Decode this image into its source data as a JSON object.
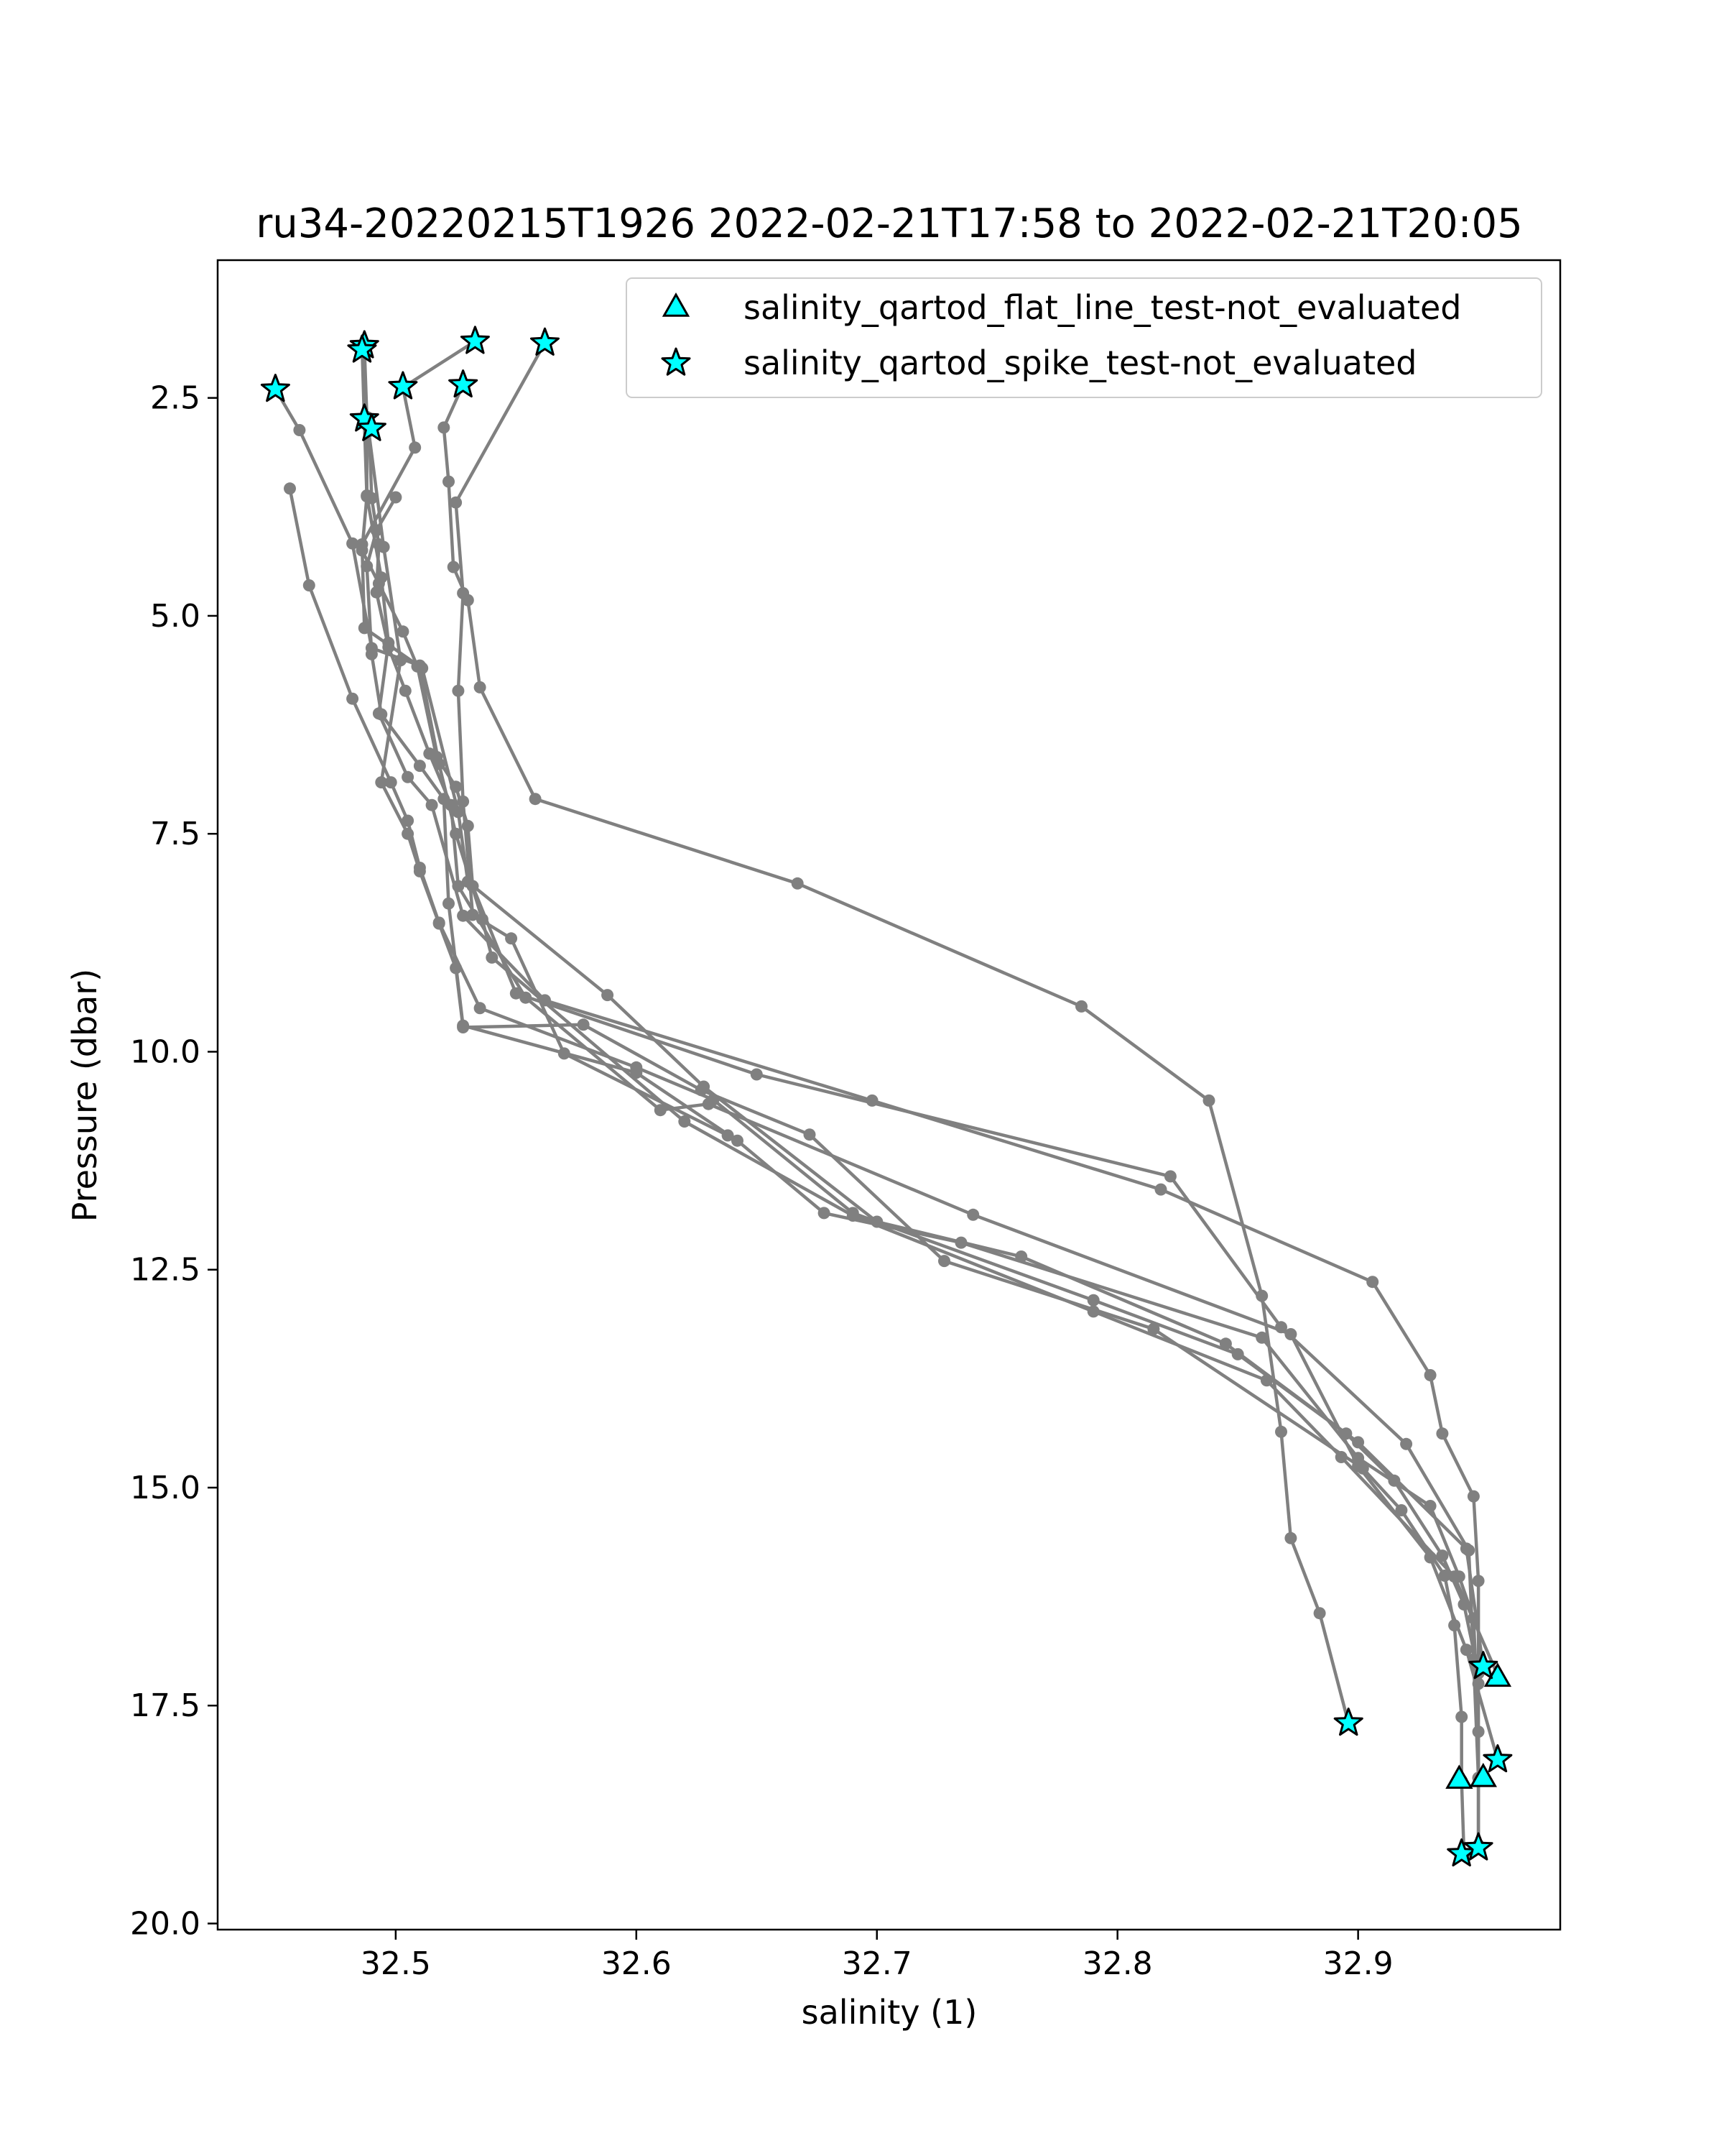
{
  "chart_data": {
    "type": "line",
    "title": "ru34-20220215T1926 2022-02-21T17:58 to 2022-02-21T20:05",
    "xlabel": "salinity (1)",
    "ylabel": "Pressure (dbar)",
    "xlim": [
      32.426,
      32.984
    ],
    "ylim": [
      20.07,
      0.92
    ],
    "y_inverted": true,
    "grid": false,
    "x_ticks": [
      {
        "value": 32.5,
        "label": "32.5"
      },
      {
        "value": 32.6,
        "label": "32.6"
      },
      {
        "value": 32.7,
        "label": "32.7"
      },
      {
        "value": 32.8,
        "label": "32.8"
      },
      {
        "value": 32.9,
        "label": "32.9"
      }
    ],
    "y_ticks": [
      {
        "value": 2.5,
        "label": "2.5"
      },
      {
        "value": 5.0,
        "label": "5.0"
      },
      {
        "value": 7.5,
        "label": "7.5"
      },
      {
        "value": 10.0,
        "label": "10.0"
      },
      {
        "value": 12.5,
        "label": "12.5"
      },
      {
        "value": 15.0,
        "label": "15.0"
      },
      {
        "value": 17.5,
        "label": "17.5"
      },
      {
        "value": 20.0,
        "label": "20.0"
      }
    ],
    "legend": {
      "placement": "top-right",
      "entries": [
        {
          "label": "salinity_qartod_flat_line_test-not_evaluated",
          "marker": "triangle"
        },
        {
          "label": "salinity_qartod_spike_test-not_evaluated",
          "marker": "star"
        }
      ]
    },
    "colors": {
      "line": "#808080",
      "marker_fill": "#00ffff",
      "marker_edge": "#000000"
    },
    "series": [
      {
        "points": [
          [
            32.562,
            1.87
          ],
          [
            32.525,
            3.7
          ],
          [
            32.528,
            4.74
          ],
          [
            32.526,
            5.86
          ],
          [
            32.528,
            7.13
          ],
          [
            32.532,
            8.43
          ],
          [
            32.548,
            8.7
          ],
          [
            32.57,
            10.02
          ],
          [
            32.638,
            10.96
          ]
        ]
      },
      {
        "points": [
          [
            32.533,
            1.85
          ],
          [
            32.503,
            2.38
          ],
          [
            32.508,
            3.07
          ],
          [
            32.486,
            4.18
          ],
          [
            32.487,
            5.14
          ],
          [
            32.511,
            5.6
          ],
          [
            32.526,
            7.25
          ],
          [
            32.53,
            8.05
          ],
          [
            32.588,
            9.35
          ],
          [
            32.628,
            10.4
          ],
          [
            32.7,
            11.95
          ],
          [
            32.76,
            12.35
          ],
          [
            32.845,
            13.35
          ],
          [
            32.9,
            14.48
          ],
          [
            32.945,
            15.7
          ],
          [
            32.952,
            17.05
          ]
        ]
      },
      {
        "points": [
          [
            32.45,
            2.4
          ],
          [
            32.46,
            2.87
          ],
          [
            32.482,
            4.17
          ],
          [
            32.49,
            5.37
          ],
          [
            32.51,
            5.57
          ],
          [
            32.518,
            6.7
          ],
          [
            32.525,
            7.5
          ],
          [
            32.536,
            8.48
          ],
          [
            32.54,
            8.92
          ],
          [
            32.62,
            10.8
          ],
          [
            32.69,
            11.88
          ],
          [
            32.79,
            12.98
          ],
          [
            32.862,
            13.77
          ],
          [
            32.893,
            14.65
          ],
          [
            32.94,
            16.02
          ],
          [
            32.958,
            17.15
          ]
        ]
      },
      {
        "points": [
          [
            32.486,
            1.9
          ],
          [
            32.487,
            2.79
          ],
          [
            32.488,
            3.63
          ],
          [
            32.486,
            4.25
          ],
          [
            32.493,
            4.63
          ],
          [
            32.503,
            5.18
          ],
          [
            32.509,
            5.58
          ],
          [
            32.517,
            6.62
          ],
          [
            32.525,
            6.96
          ],
          [
            32.53,
            7.41
          ],
          [
            32.532,
            8.1
          ],
          [
            32.55,
            9.33
          ],
          [
            32.65,
            10.26
          ],
          [
            32.822,
            11.43
          ],
          [
            32.868,
            13.16
          ],
          [
            32.92,
            14.5
          ],
          [
            32.946,
            15.72
          ],
          [
            32.948,
            16.97
          ],
          [
            32.95,
            18.33
          ]
        ]
      },
      {
        "points": [
          [
            32.528,
            2.35
          ],
          [
            32.52,
            2.84
          ],
          [
            32.522,
            3.46
          ],
          [
            32.524,
            4.44
          ],
          [
            32.53,
            4.82
          ],
          [
            32.535,
            5.82
          ],
          [
            32.558,
            7.1
          ],
          [
            32.667,
            8.07
          ],
          [
            32.785,
            9.48
          ],
          [
            32.838,
            10.56
          ],
          [
            32.86,
            12.8
          ],
          [
            32.868,
            14.36
          ],
          [
            32.872,
            15.58
          ],
          [
            32.884,
            16.44
          ],
          [
            32.896,
            17.7
          ]
        ]
      },
      {
        "points": [
          [
            32.489,
            2.88
          ],
          [
            32.49,
            3.65
          ],
          [
            32.493,
            4.18
          ],
          [
            32.492,
            4.73
          ],
          [
            32.497,
            5.36
          ],
          [
            32.504,
            5.86
          ],
          [
            32.514,
            6.58
          ],
          [
            32.523,
            7.17
          ],
          [
            32.526,
            8.1
          ],
          [
            32.554,
            9.38
          ],
          [
            32.61,
            10.67
          ],
          [
            32.63,
            10.6
          ],
          [
            32.74,
            11.87
          ],
          [
            32.872,
            13.24
          ],
          [
            32.9,
            14.75
          ],
          [
            32.93,
            15.8
          ],
          [
            32.945,
            16.86
          ],
          [
            32.958,
            18.12
          ]
        ]
      },
      {
        "points": [
          [
            32.487,
            1.92
          ],
          [
            32.488,
            2.72
          ],
          [
            32.488,
            3.62
          ],
          [
            32.494,
            4.56
          ],
          [
            32.497,
            5.31
          ],
          [
            32.493,
            6.12
          ],
          [
            32.505,
            6.85
          ],
          [
            32.515,
            7.17
          ],
          [
            32.528,
            8.44
          ],
          [
            32.562,
            9.41
          ],
          [
            32.698,
            10.56
          ],
          [
            32.818,
            11.58
          ],
          [
            32.906,
            12.64
          ],
          [
            32.93,
            13.71
          ],
          [
            32.935,
            14.38
          ],
          [
            32.948,
            15.1
          ],
          [
            32.95,
            16.07
          ],
          [
            32.95,
            17.25
          ],
          [
            32.95,
            18.33
          ],
          [
            32.95,
            19.1
          ]
        ]
      },
      {
        "points": [
          [
            32.488,
            2.72
          ],
          [
            32.495,
            4.21
          ],
          [
            32.502,
            5.51
          ],
          [
            32.494,
            6.91
          ],
          [
            32.505,
            7.5
          ],
          [
            32.51,
            7.93
          ],
          [
            32.518,
            8.53
          ],
          [
            32.525,
            9.04
          ],
          [
            32.528,
            9.72
          ],
          [
            32.578,
            9.69
          ],
          [
            32.627,
            10.44
          ],
          [
            32.672,
            10.95
          ],
          [
            32.728,
            12.4
          ],
          [
            32.815,
            13.18
          ],
          [
            32.902,
            14.78
          ],
          [
            32.918,
            15.26
          ],
          [
            32.936,
            16.01
          ],
          [
            32.94,
            16.58
          ],
          [
            32.943,
            17.63
          ],
          [
            32.943,
            18.36
          ],
          [
            32.944,
            19.2
          ]
        ]
      },
      {
        "points": [
          [
            32.5,
            3.64
          ],
          [
            32.492,
            4.02
          ],
          [
            32.488,
            4.43
          ],
          [
            32.49,
            5.44
          ],
          [
            32.494,
            6.13
          ],
          [
            32.51,
            6.72
          ],
          [
            32.52,
            7.1
          ],
          [
            32.522,
            8.3
          ],
          [
            32.528,
            9.7
          ],
          [
            32.6,
            10.24
          ],
          [
            32.642,
            11.02
          ],
          [
            32.678,
            11.85
          ],
          [
            32.735,
            12.19
          ],
          [
            32.86,
            13.28
          ],
          [
            32.9,
            14.66
          ],
          [
            32.93,
            15.21
          ],
          [
            32.942,
            16.02
          ],
          [
            32.948,
            16.5
          ],
          [
            32.95,
            17.8
          ],
          [
            32.95,
            19.13
          ]
        ]
      },
      {
        "points": [
          [
            32.456,
            3.54
          ],
          [
            32.464,
            4.65
          ],
          [
            32.482,
            5.95
          ],
          [
            32.498,
            6.91
          ],
          [
            32.505,
            7.35
          ],
          [
            32.51,
            7.89
          ],
          [
            32.518,
            8.52
          ],
          [
            32.535,
            9.5
          ],
          [
            32.6,
            10.18
          ],
          [
            32.632,
            10.55
          ],
          [
            32.69,
            11.85
          ],
          [
            32.79,
            12.85
          ],
          [
            32.85,
            13.47
          ],
          [
            32.895,
            14.38
          ],
          [
            32.915,
            14.92
          ],
          [
            32.935,
            15.78
          ],
          [
            32.944,
            16.34
          ],
          [
            32.95,
            17.13
          ]
        ]
      }
    ],
    "flat_line_markers": [
      [
        32.958,
        17.18
      ],
      [
        32.942,
        18.35
      ],
      [
        32.952,
        18.33
      ]
    ],
    "spike_markers": [
      [
        32.562,
        1.87
      ],
      [
        32.533,
        1.85
      ],
      [
        32.487,
        1.9
      ],
      [
        32.486,
        1.95
      ],
      [
        32.45,
        2.4
      ],
      [
        32.503,
        2.37
      ],
      [
        32.528,
        2.35
      ],
      [
        32.487,
        2.74
      ],
      [
        32.49,
        2.85
      ],
      [
        32.952,
        17.05
      ],
      [
        32.896,
        17.7
      ],
      [
        32.958,
        18.12
      ],
      [
        32.943,
        19.2
      ],
      [
        32.95,
        19.13
      ]
    ]
  }
}
